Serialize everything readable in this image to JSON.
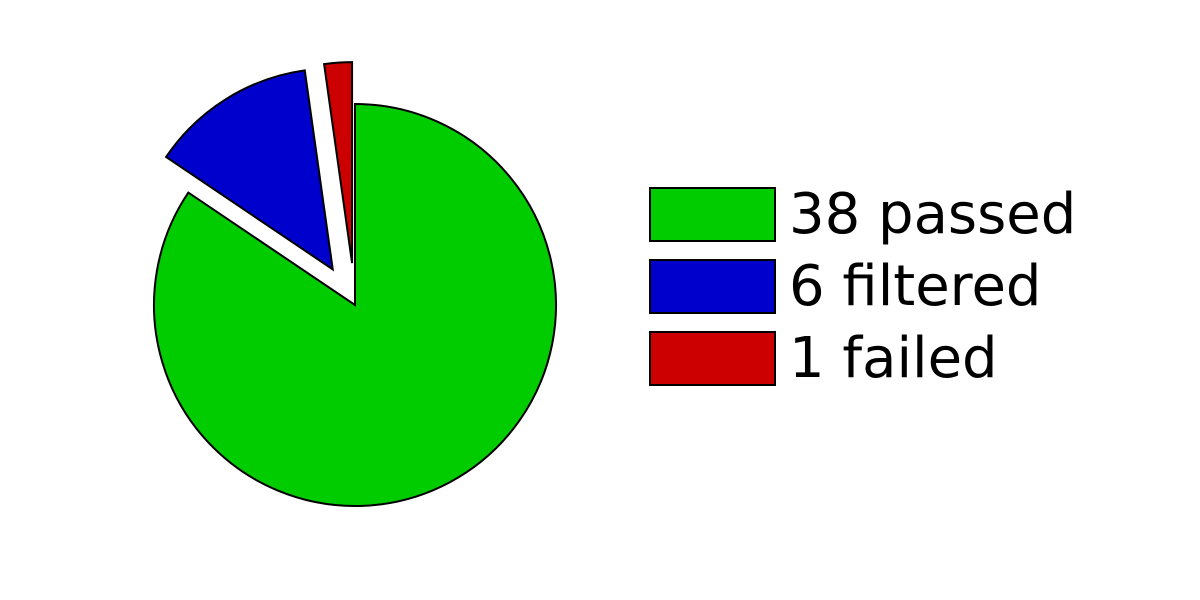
{
  "chart_data": {
    "type": "pie",
    "title": "",
    "categories": [
      "passed",
      "filtered",
      "failed"
    ],
    "values": [
      38,
      6,
      1
    ],
    "colors": [
      "#00cc00",
      "#0000cc",
      "#cc0000"
    ],
    "exploded": [
      false,
      true,
      true
    ],
    "start": "top",
    "direction": "clockwise",
    "legend": {
      "placement": "right",
      "entries": [
        "38 passed",
        "6 filtered",
        "1 failed"
      ]
    }
  }
}
